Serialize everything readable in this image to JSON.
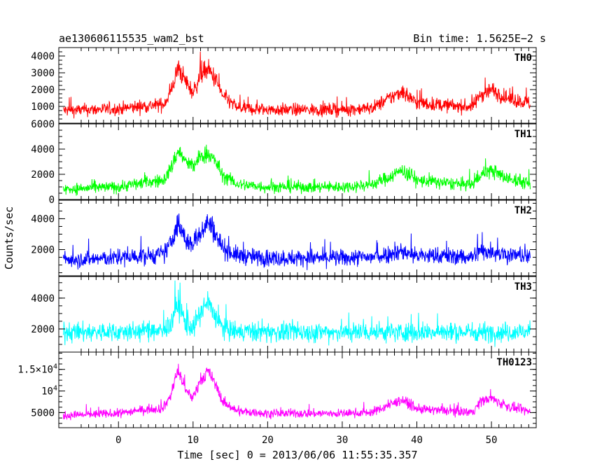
{
  "header": {
    "left_title": "ae130606115535_wam2_bst",
    "right_title": "Bin time: 1.5625E−2 s"
  },
  "y_axis_label": "Counts/sec",
  "x_axis_label": "Time [sec] 0 = 2013/06/06 11:55:35.357",
  "chart_data": [
    {
      "type": "line",
      "name": "TH0",
      "color": "#ff0000",
      "xlim": [
        -8,
        56
      ],
      "ylim": [
        0,
        4500
      ],
      "yticks": [
        {
          "value": 1000,
          "label": "1000"
        },
        {
          "value": 2000,
          "label": "2000"
        },
        {
          "value": 3000,
          "label": "3000"
        },
        {
          "value": 4000,
          "label": "4000"
        }
      ],
      "baseline": [
        [
          -8,
          750
        ],
        [
          0,
          850
        ],
        [
          4,
          1050
        ],
        [
          6,
          1100
        ],
        [
          7,
          1800
        ],
        [
          8,
          3300
        ],
        [
          9,
          2500
        ],
        [
          10,
          1800
        ],
        [
          11,
          2900
        ],
        [
          12,
          3200
        ],
        [
          13,
          2600
        ],
        [
          14,
          1600
        ],
        [
          16,
          900
        ],
        [
          20,
          800
        ],
        [
          30,
          800
        ],
        [
          34,
          900
        ],
        [
          36,
          1400
        ],
        [
          38,
          1900
        ],
        [
          40,
          1200
        ],
        [
          46,
          1000
        ],
        [
          47.5,
          1000
        ],
        [
          48.5,
          1700
        ],
        [
          50,
          2000
        ],
        [
          52,
          1500
        ],
        [
          56,
          1100
        ]
      ],
      "noise": 380
    },
    {
      "type": "line",
      "name": "TH1",
      "color": "#00ff00",
      "xlim": [
        -8,
        56
      ],
      "ylim": [
        0,
        6000
      ],
      "yticks": [
        {
          "value": 0,
          "label": "0"
        },
        {
          "value": 2000,
          "label": "2000"
        },
        {
          "value": 4000,
          "label": "4000"
        },
        {
          "value": 6000,
          "label": "6000"
        }
      ],
      "baseline": [
        [
          -8,
          800
        ],
        [
          0,
          1000
        ],
        [
          4,
          1400
        ],
        [
          6,
          1500
        ],
        [
          7,
          2400
        ],
        [
          8,
          3900
        ],
        [
          9,
          3000
        ],
        [
          10,
          2600
        ],
        [
          11,
          3400
        ],
        [
          12,
          3700
        ],
        [
          13,
          3000
        ],
        [
          14,
          1900
        ],
        [
          16,
          1200
        ],
        [
          20,
          1000
        ],
        [
          30,
          1000
        ],
        [
          34,
          1200
        ],
        [
          36,
          1700
        ],
        [
          38,
          2300
        ],
        [
          40,
          1500
        ],
        [
          46,
          1200
        ],
        [
          47.5,
          1200
        ],
        [
          48.5,
          2000
        ],
        [
          50,
          2300
        ],
        [
          52,
          1700
        ],
        [
          56,
          1100
        ]
      ],
      "noise": 480
    },
    {
      "type": "line",
      "name": "TH2",
      "color": "#0000ff",
      "xlim": [
        -8,
        56
      ],
      "ylim": [
        300,
        5200
      ],
      "yticks": [
        {
          "value": 2000,
          "label": "2000"
        },
        {
          "value": 4000,
          "label": "4000"
        }
      ],
      "baseline": [
        [
          -8,
          1350
        ],
        [
          0,
          1450
        ],
        [
          4,
          1600
        ],
        [
          6,
          1700
        ],
        [
          7,
          2400
        ],
        [
          8,
          3700
        ],
        [
          9,
          2600
        ],
        [
          10,
          2300
        ],
        [
          11,
          3200
        ],
        [
          12,
          3800
        ],
        [
          13,
          3100
        ],
        [
          14,
          2100
        ],
        [
          16,
          1600
        ],
        [
          20,
          1450
        ],
        [
          30,
          1450
        ],
        [
          34,
          1500
        ],
        [
          36,
          1700
        ],
        [
          38,
          1900
        ],
        [
          40,
          1600
        ],
        [
          46,
          1550
        ],
        [
          47.5,
          1550
        ],
        [
          48.5,
          1900
        ],
        [
          50,
          1900
        ],
        [
          52,
          1700
        ],
        [
          56,
          1450
        ]
      ],
      "noise": 480
    },
    {
      "type": "line",
      "name": "TH3",
      "color": "#00ffff",
      "xlim": [
        -8,
        56
      ],
      "ylim": [
        500,
        5400
      ],
      "yticks": [
        {
          "value": 2000,
          "label": "2000"
        },
        {
          "value": 4000,
          "label": "4000"
        }
      ],
      "baseline": [
        [
          -8,
          1800
        ],
        [
          0,
          1800
        ],
        [
          4,
          1850
        ],
        [
          6,
          1850
        ],
        [
          7,
          2300
        ],
        [
          8,
          3700
        ],
        [
          9,
          2300
        ],
        [
          10,
          2100
        ],
        [
          11,
          3000
        ],
        [
          12,
          3700
        ],
        [
          13,
          2800
        ],
        [
          14,
          2000
        ],
        [
          16,
          1800
        ],
        [
          30,
          1800
        ],
        [
          56,
          1800
        ]
      ],
      "noise": 520
    },
    {
      "type": "line",
      "name": "TH0123",
      "color": "#ff00ff",
      "xlim": [
        -8,
        56
      ],
      "ylim": [
        1500,
        19000
      ],
      "yticks": [
        {
          "value": 5000,
          "label": "5000"
        },
        {
          "value": 10000,
          "label": "10",
          "exp": "4"
        },
        {
          "value": 15000,
          "label": "1.5×10",
          "exp": "4"
        }
      ],
      "baseline": [
        [
          -8,
          4300
        ],
        [
          0,
          4800
        ],
        [
          4,
          5800
        ],
        [
          6,
          6000
        ],
        [
          7,
          9000
        ],
        [
          8,
          15000
        ],
        [
          9,
          10000
        ],
        [
          10,
          8500
        ],
        [
          11,
          12500
        ],
        [
          12,
          14500
        ],
        [
          13,
          11500
        ],
        [
          14,
          7500
        ],
        [
          16,
          5300
        ],
        [
          20,
          4800
        ],
        [
          30,
          4800
        ],
        [
          34,
          5100
        ],
        [
          36,
          6500
        ],
        [
          38,
          8000
        ],
        [
          40,
          5800
        ],
        [
          46,
          5200
        ],
        [
          47.5,
          5200
        ],
        [
          48.5,
          7500
        ],
        [
          50,
          8300
        ],
        [
          52,
          6500
        ],
        [
          56,
          4800
        ]
      ],
      "noise": 900
    }
  ],
  "x_ticks": [
    {
      "value": 0,
      "label": "0"
    },
    {
      "value": 10,
      "label": "10"
    },
    {
      "value": 20,
      "label": "20"
    },
    {
      "value": 30,
      "label": "30"
    },
    {
      "value": 40,
      "label": "40"
    },
    {
      "value": 50,
      "label": "50"
    }
  ]
}
